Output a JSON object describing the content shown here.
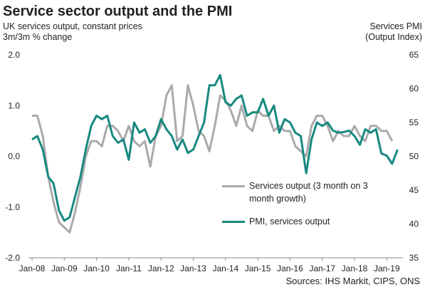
{
  "title": "Service sector output and the PMI",
  "source": "Sources: IHS Markit, CIPS, ONS",
  "chart_data": {
    "type": "line",
    "y_label": "UK services output, constant prices 3m/3m % change",
    "y2_label": "Services PMI (Output Index)",
    "categories": [
      "Jan-08",
      null,
      null,
      null,
      null,
      null,
      "Jan-09",
      null,
      null,
      null,
      null,
      null,
      "Jan-10",
      null,
      null,
      null,
      null,
      null,
      "Jan-11",
      null,
      null,
      null,
      null,
      null,
      "Jan-12",
      null,
      null,
      null,
      null,
      null,
      "Jan-13",
      null,
      null,
      null,
      null,
      null,
      "Jan-14",
      null,
      null,
      null,
      null,
      null,
      "Jan-15",
      null,
      null,
      null,
      null,
      null,
      "Jan-16",
      null,
      null,
      null,
      null,
      null,
      "Jan-17",
      null,
      null,
      null,
      null,
      null,
      "Jan-18",
      null,
      null,
      null,
      null,
      null,
      "Jan-19",
      null,
      null
    ],
    "series": [
      {
        "name": "Services output (3 month on 3 month growth)",
        "color": "#aaaaaa",
        "values": [
          0.8,
          0.8,
          0.4,
          -0.4,
          -0.9,
          -1.3,
          -1.4,
          -1.5,
          -1.1,
          -0.6,
          0.0,
          0.3,
          0.3,
          0.2,
          0.6,
          0.6,
          0.5,
          0.3,
          0.6,
          0.3,
          0.2,
          0.3,
          -0.2,
          0.4,
          0.6,
          1.2,
          1.4,
          0.3,
          0.4,
          1.4,
          1.0,
          0.5,
          0.4,
          0.1,
          0.6,
          1.2,
          1.1,
          0.9,
          0.6,
          1.0,
          0.6,
          0.5,
          0.9,
          0.8,
          0.8,
          0.5,
          0.6,
          0.5,
          0.5,
          0.2,
          0.1,
          0.0,
          0.6,
          0.8,
          0.8,
          0.6,
          0.3,
          0.5,
          0.4,
          0.4,
          0.6,
          0.4,
          0.3,
          0.6,
          0.6,
          0.5,
          0.5,
          0.3,
          null
        ]
      },
      {
        "name": "PMI, services output",
        "color": "#17897f",
        "axis": "y2",
        "values": [
          52.5,
          53,
          51,
          47,
          46,
          42,
          40.5,
          41,
          44,
          47,
          51,
          54.5,
          56,
          55.5,
          56,
          53,
          52,
          52.5,
          49.5,
          55,
          53.5,
          54,
          52,
          53,
          55.5,
          54,
          53,
          51,
          52.5,
          50.5,
          51,
          53,
          55,
          60.5,
          60.5,
          62,
          58,
          57.5,
          58.5,
          59,
          56,
          56.5,
          56.5,
          58.5,
          56,
          57.5,
          53.5,
          55.5,
          55,
          53.5,
          53,
          47.5,
          52.5,
          55,
          54.5,
          55,
          53.8,
          53.5,
          53.6,
          53.8,
          53,
          51.7,
          54,
          53.5,
          54,
          50.4,
          50.1,
          48.9,
          51
        ]
      }
    ],
    "ylim": [
      -2,
      2
    ],
    "yticks": [
      {
        "value": -2,
        "label": "-2.0"
      },
      {
        "value": -1,
        "label": "-1.0"
      },
      {
        "value": 0,
        "label": "0.0"
      },
      {
        "value": 1,
        "label": "1.0"
      },
      {
        "value": 2,
        "label": "2.0"
      }
    ],
    "y2lim": [
      35,
      65
    ],
    "y2ticks": [
      35,
      40,
      45,
      50,
      55,
      60,
      65
    ],
    "grid": false
  }
}
